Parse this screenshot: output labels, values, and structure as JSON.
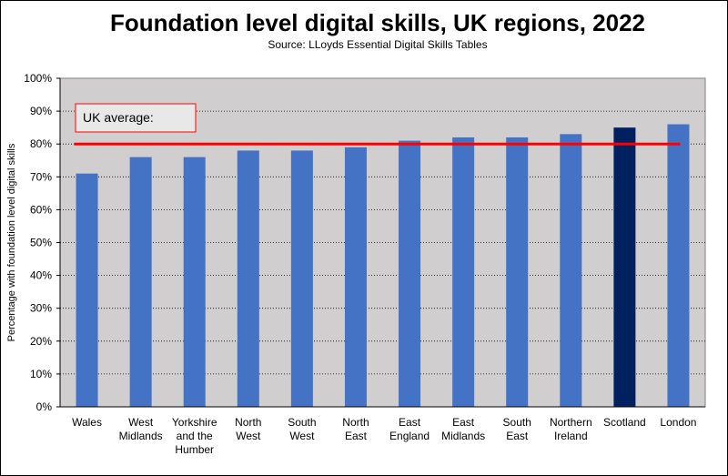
{
  "chart_data": {
    "type": "bar",
    "title": "Foundation level digital skills, UK regions, 2022",
    "subtitle": "Source: LLoyds Essential Digital Skills Tables",
    "ylabel": "Percentage with foundation level digital skills",
    "xlabel": "",
    "ylim": [
      0,
      100
    ],
    "ytick_step": 10,
    "ytick_suffix": "%",
    "grid": true,
    "categories": [
      "Wales",
      "West Midlands",
      "Yorkshire and the Humber",
      "North West",
      "South West",
      "North East",
      "East England",
      "East Midlands",
      "South East",
      "Northern Ireland",
      "Scotland",
      "London"
    ],
    "category_lines": [
      [
        "Wales"
      ],
      [
        "West",
        "Midlands"
      ],
      [
        "Yorkshire",
        "and the",
        "Humber"
      ],
      [
        "North",
        "West"
      ],
      [
        "South",
        "West"
      ],
      [
        "North",
        "East"
      ],
      [
        "East",
        "England"
      ],
      [
        "East",
        "Midlands"
      ],
      [
        "South",
        "East"
      ],
      [
        "Northern",
        "Ireland"
      ],
      [
        "Scotland"
      ],
      [
        "London"
      ]
    ],
    "values": [
      71,
      76,
      76,
      78,
      78,
      79,
      81,
      82,
      82,
      83,
      85,
      86
    ],
    "highlight_index": 10,
    "reference_line": {
      "label": "UK average:",
      "value": 80
    },
    "colors": {
      "bar": "#4472C4",
      "highlight": "#002060",
      "reference": "#FF0000",
      "plot_bg": "#D0CECE"
    }
  }
}
